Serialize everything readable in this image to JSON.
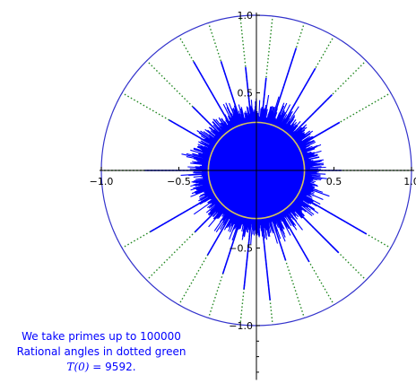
{
  "chart_data": {
    "type": "scatter",
    "title": "",
    "xlabel": "",
    "ylabel": "",
    "xlim": [
      -1.0,
      1.0
    ],
    "ylim": [
      -1.35,
      1.0
    ],
    "grid": false,
    "x_ticks": [
      -1.0,
      -0.5,
      0.5,
      1.0
    ],
    "x_tick_labels": [
      "−1.0",
      "−0.5",
      "0.5",
      "1.0"
    ],
    "y_ticks": [
      1.0,
      0.5,
      -0.5,
      -1.0
    ],
    "y_tick_labels": [
      "1.0",
      "0.5",
      "−0.5",
      "−1.0"
    ],
    "unit_circle": {
      "radius": 1.0,
      "color": "#3333cc"
    },
    "yellow_circle": {
      "radius": 0.31,
      "color": "#d6c35a"
    },
    "blue_cloud": {
      "color": "#0000ff",
      "core_radius": 0.31,
      "max_spike": 0.88
    },
    "rational_angle_rays_deg": [
      0,
      30,
      45,
      60,
      72,
      84,
      96,
      108,
      120,
      135,
      150,
      180,
      210,
      225,
      240,
      252,
      264,
      276,
      288,
      300,
      315,
      330
    ],
    "rational_angle_color": "#228822",
    "caption": [
      {
        "text": "We take primes up to 100000",
        "color": "#0000ff"
      },
      {
        "text": "Rational angles in dotted green",
        "color": "#0000ff"
      },
      {
        "text_math": "T(0)",
        "text_value": " = 9592.",
        "color": "#0000ff"
      }
    ]
  }
}
